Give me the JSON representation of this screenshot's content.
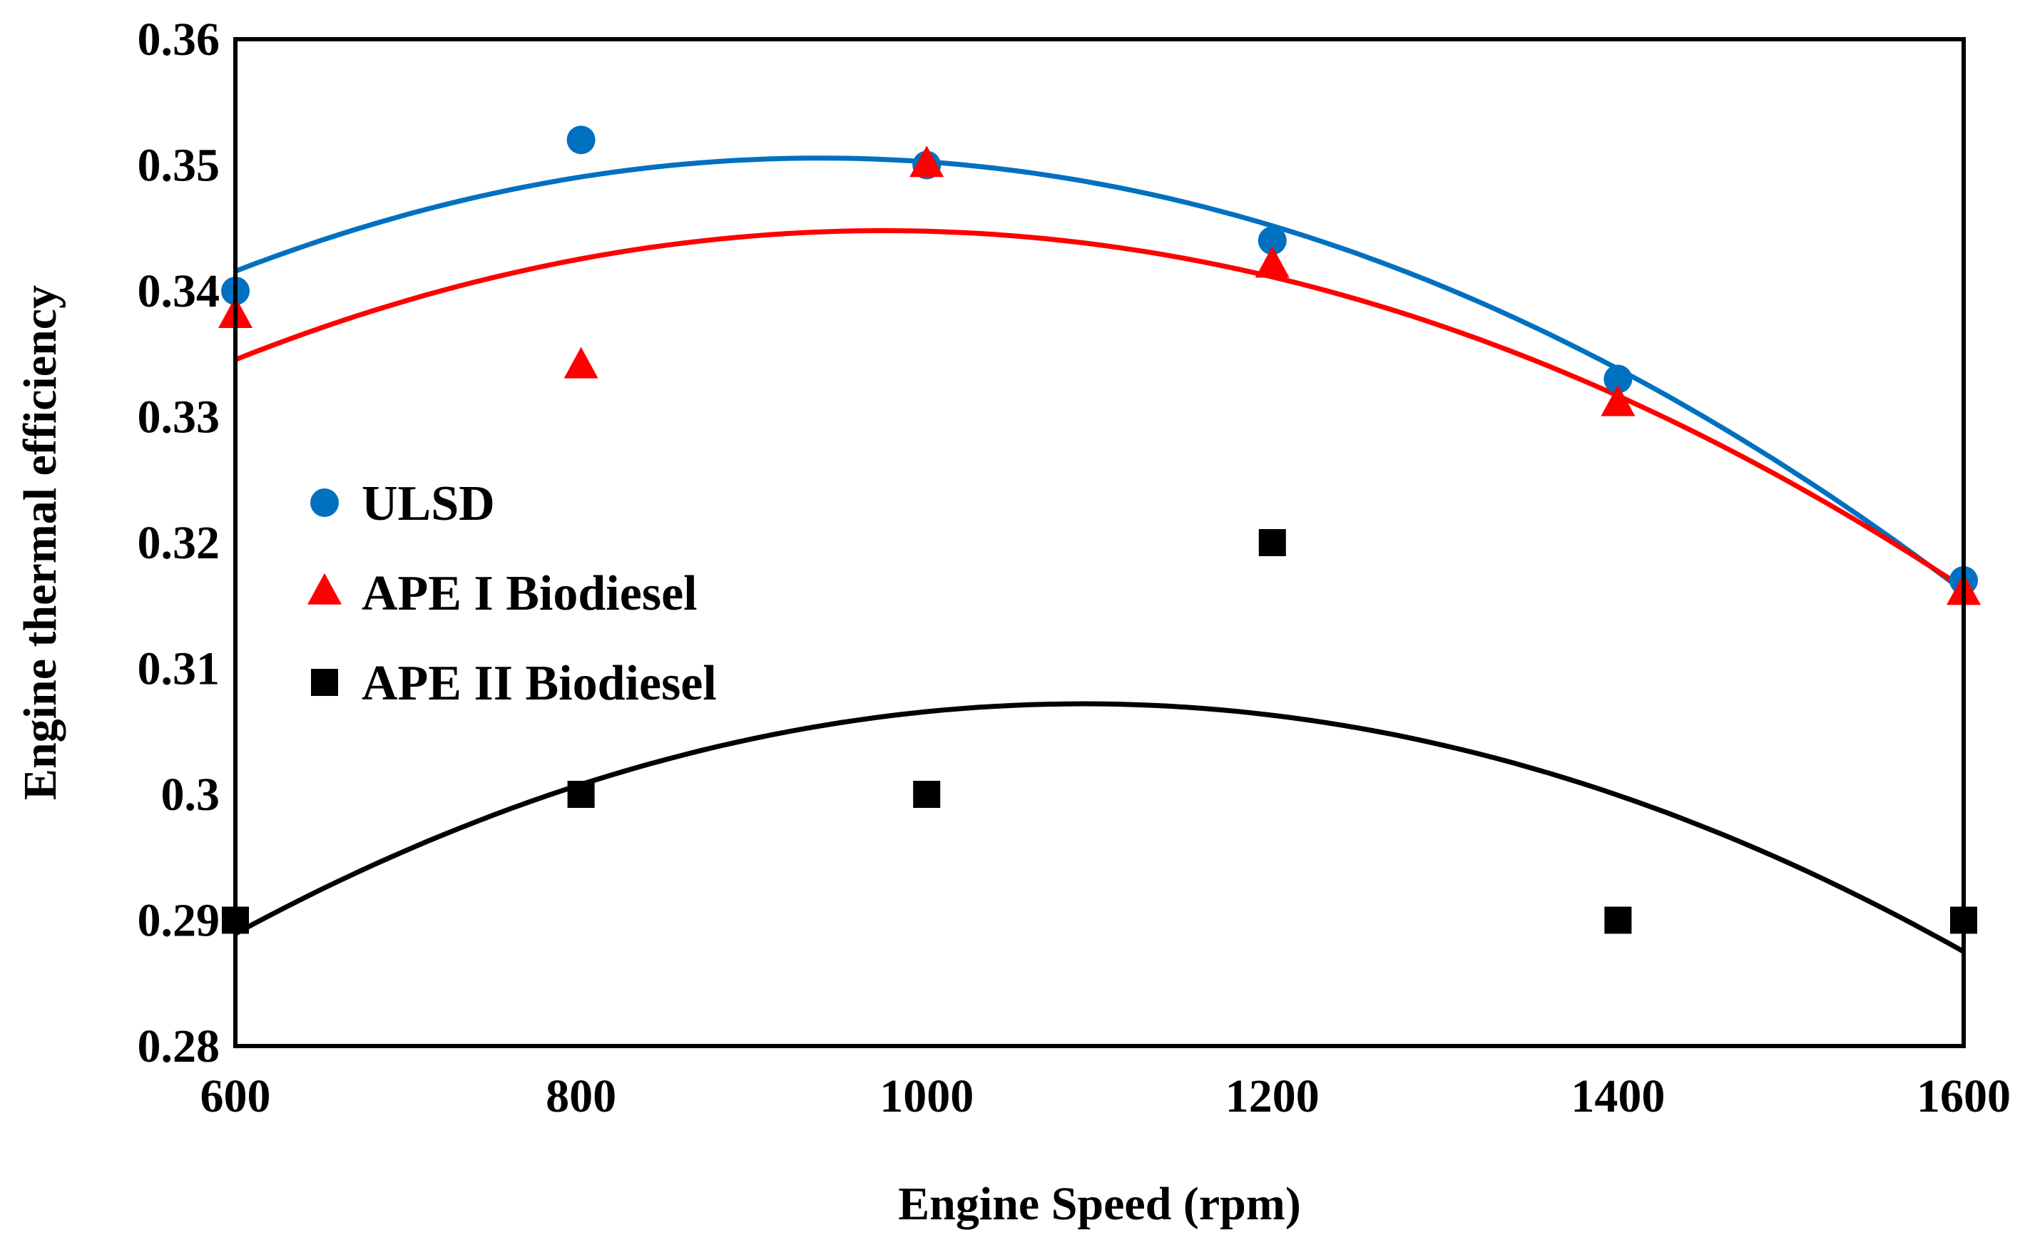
{
  "chart_data": {
    "type": "scatter",
    "title": "",
    "xlabel": "Engine Speed (rpm)",
    "ylabel": "Engine thermal efficiency",
    "xlim": [
      600,
      1600
    ],
    "ylim": [
      0.28,
      0.36
    ],
    "x_ticks": [
      600,
      800,
      1000,
      1200,
      1400,
      1600
    ],
    "x_tick_labels": [
      "600",
      "800",
      "1000",
      "1200",
      "1400",
      "1600"
    ],
    "y_ticks": [
      0.28,
      0.29,
      0.3,
      0.31,
      0.32,
      0.33,
      0.34,
      0.35,
      0.36
    ],
    "y_tick_labels": [
      "0.28",
      "0.29",
      "0.3",
      "0.31",
      "0.32",
      "0.33",
      "0.34",
      "0.35",
      "0.36"
    ],
    "grid": false,
    "legend_position": "center-left",
    "series": [
      {
        "name": "ULSD",
        "marker": "circle",
        "color": "#0070C0",
        "x": [
          600,
          800,
          1000,
          1200,
          1400,
          1600
        ],
        "y": [
          0.34,
          0.352,
          0.35,
          0.344,
          0.333,
          0.317
        ],
        "trendline": "polynomial-2"
      },
      {
        "name": "APE I Biodiesel",
        "marker": "triangle",
        "color": "#FF0000",
        "x": [
          600,
          800,
          1000,
          1200,
          1400,
          1600
        ],
        "y": [
          0.338,
          0.334,
          0.35,
          0.342,
          0.331,
          0.316
        ],
        "trendline": "polynomial-2"
      },
      {
        "name": "APE II Biodiesel",
        "marker": "square",
        "color": "#000000",
        "x": [
          600,
          800,
          1000,
          1200,
          1400,
          1600
        ],
        "y": [
          0.29,
          0.3,
          0.3,
          0.32,
          0.29,
          0.29
        ],
        "trendline": "polynomial-2"
      }
    ]
  }
}
